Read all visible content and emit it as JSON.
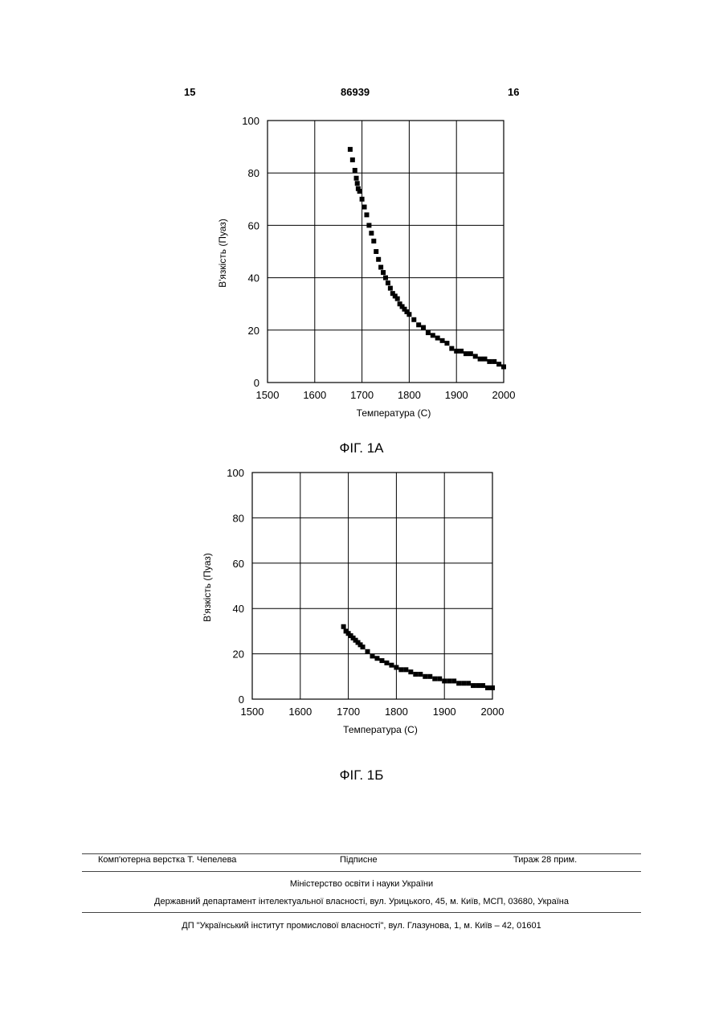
{
  "header": {
    "page_left": "15",
    "patent_number": "86939",
    "page_right": "16"
  },
  "figures": [
    {
      "caption": "ФІГ. 1А"
    },
    {
      "caption": "ФІГ. 1Б"
    }
  ],
  "chart_data": [
    {
      "type": "scatter",
      "xlabel": "Температура (С)",
      "ylabel": "В'язкість (Пуаз)",
      "xlim": [
        1500,
        2000
      ],
      "ylim": [
        0,
        100
      ],
      "x_ticks": [
        "1500",
        "1600",
        "1700",
        "1800",
        "1900",
        "2000"
      ],
      "y_ticks": [
        "0",
        "20",
        "40",
        "60",
        "80",
        "100"
      ],
      "grid": true,
      "series": [
        {
          "x": [
            1675,
            1680,
            1685,
            1688,
            1690,
            1692,
            1695,
            1700,
            1705,
            1710,
            1715,
            1720,
            1725,
            1730,
            1735,
            1740,
            1745,
            1750,
            1755,
            1760,
            1765,
            1770,
            1775,
            1780,
            1785,
            1790,
            1795,
            1800,
            1810,
            1820,
            1830,
            1840,
            1850,
            1860,
            1870,
            1880,
            1890,
            1900,
            1910,
            1920,
            1930,
            1940,
            1950,
            1960,
            1970,
            1980,
            1990,
            2000
          ],
          "y": [
            89,
            85,
            81,
            78,
            76,
            74,
            73,
            70,
            67,
            64,
            60,
            57,
            54,
            50,
            47,
            44,
            42,
            40,
            38,
            36,
            34,
            33,
            32,
            30,
            29,
            28,
            27,
            26,
            24,
            22,
            21,
            19,
            18,
            17,
            16,
            15,
            13,
            12,
            12,
            11,
            11,
            10,
            9,
            9,
            8,
            8,
            7,
            6
          ]
        }
      ]
    },
    {
      "type": "scatter",
      "xlabel": "Температура (С)",
      "ylabel": "В'язкість (Пуаз)",
      "xlim": [
        1500,
        2000
      ],
      "ylim": [
        0,
        100
      ],
      "x_ticks": [
        "1500",
        "1600",
        "1700",
        "1800",
        "1900",
        "2000"
      ],
      "y_ticks": [
        "0",
        "20",
        "40",
        "60",
        "80",
        "100"
      ],
      "grid": true,
      "series": [
        {
          "x": [
            1690,
            1695,
            1700,
            1705,
            1710,
            1715,
            1720,
            1725,
            1730,
            1740,
            1750,
            1760,
            1770,
            1780,
            1790,
            1800,
            1810,
            1820,
            1830,
            1840,
            1850,
            1860,
            1870,
            1880,
            1890,
            1900,
            1910,
            1920,
            1930,
            1940,
            1950,
            1960,
            1970,
            1980,
            1990,
            2000
          ],
          "y": [
            32,
            30,
            29,
            28,
            27,
            26,
            25,
            24,
            23,
            21,
            19,
            18,
            17,
            16,
            15,
            14,
            13,
            13,
            12,
            11,
            11,
            10,
            10,
            9,
            9,
            8,
            8,
            8,
            7,
            7,
            7,
            6,
            6,
            6,
            5,
            5
          ]
        }
      ]
    }
  ],
  "footer": {
    "typesetter": "Комп'ютерна верстка Т. Чепелева",
    "signed": "Підписне",
    "circulation": "Тираж 28 прим.",
    "ministry": "Міністерство освіти і науки України",
    "department": "Державний департамент інтелектуальної власності, вул. Урицького, 45, м. Київ, МСП, 03680, Україна",
    "institute": "ДП \"Український інститут промислової власності\", вул. Глазунова, 1, м. Київ – 42, 01601"
  }
}
